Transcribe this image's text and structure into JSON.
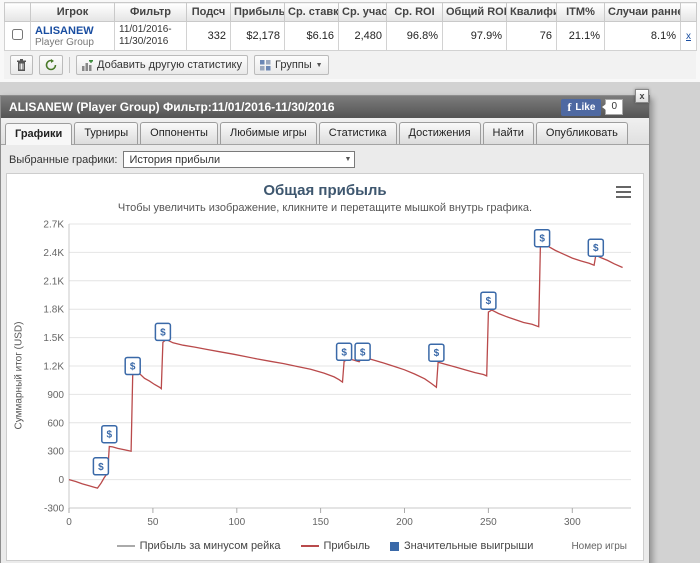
{
  "stats_table": {
    "columns": [
      "Игрок",
      "Фильтр",
      "Подсч",
      "Прибыль",
      "Ср. ставк",
      "Ср. учас",
      "Ср. ROI",
      "Общий ROI",
      "Квалифи",
      "ITM%",
      "Случаи ранне"
    ],
    "row": {
      "player_name": "ALISANEW",
      "player_type": "Player Group",
      "filter_line1": "11/01/2016-",
      "filter_line2": "11/30/2016",
      "values": [
        "332",
        "$2,178",
        "$6.16",
        "2,480",
        "96.8%",
        "97.9%",
        "76",
        "21.1%",
        "8.1%"
      ],
      "remove_label": "x"
    }
  },
  "toolbar": {
    "add_statistic_label": "Добавить другую статистику",
    "groups_label": "Группы"
  },
  "panel": {
    "title": "ALISANEW (Player Group) Фильтр:11/01/2016-11/30/2016",
    "close_label": "x",
    "facebook": {
      "f": "f",
      "like_label": "Like",
      "count": "0"
    },
    "tabs": [
      "Графики",
      "Турниры",
      "Оппоненты",
      "Любимые игры",
      "Статистика",
      "Достижения",
      "Найти",
      "Опубликовать"
    ],
    "active_tab": "Графики",
    "charts_select_label": "Выбранные графики:",
    "charts_select_value": "История прибыли"
  },
  "chart_data": {
    "type": "line",
    "title": "Общая прибыль",
    "subtitle": "Чтобы увеличить изображение, кликните и перетащите мышкой внутрь графика.",
    "ylabel": "Суммарный итог (USD)",
    "xlabel": "Номер игры",
    "xlim": [
      0,
      335
    ],
    "ylim": [
      -300,
      2700
    ],
    "grid": true,
    "legend_position": "bottom",
    "xticks": [
      0,
      50,
      100,
      150,
      200,
      250,
      300
    ],
    "yticks": [
      {
        "value": -300,
        "label": "-300"
      },
      {
        "value": 0,
        "label": "0"
      },
      {
        "value": 300,
        "label": "300"
      },
      {
        "value": 600,
        "label": "600"
      },
      {
        "value": 900,
        "label": "900"
      },
      {
        "value": 1200,
        "label": "1.2K"
      },
      {
        "value": 1500,
        "label": "1.5K"
      },
      {
        "value": 1800,
        "label": "1.8K"
      },
      {
        "value": 2100,
        "label": "2.1K"
      },
      {
        "value": 2400,
        "label": "2.4K"
      },
      {
        "value": 2700,
        "label": "2.7K"
      }
    ],
    "legend": [
      {
        "label": "Прибыль за минусом рейка",
        "type": "line",
        "color": "#aaaaaa"
      },
      {
        "label": "Прибыль",
        "type": "line",
        "color": "#b94a4b"
      },
      {
        "label": "Значительные выигрыши",
        "type": "square",
        "color": "#3a69a8"
      }
    ],
    "series": [
      {
        "name": "Прибыль",
        "color": "#b94a4b",
        "points": [
          [
            0,
            0
          ],
          [
            4,
            -20
          ],
          [
            8,
            -45
          ],
          [
            12,
            -65
          ],
          [
            15,
            -80
          ],
          [
            17,
            -90
          ],
          [
            19,
            -40
          ],
          [
            20,
            -10
          ],
          [
            21,
            20
          ],
          [
            22,
            45
          ],
          [
            23,
            60
          ],
          [
            24,
            350
          ],
          [
            26,
            345
          ],
          [
            29,
            330
          ],
          [
            33,
            315
          ],
          [
            37,
            300
          ],
          [
            38,
            1100
          ],
          [
            40,
            1170
          ],
          [
            42,
            1120
          ],
          [
            45,
            1070
          ],
          [
            48,
            1040
          ],
          [
            51,
            1005
          ],
          [
            54,
            975
          ],
          [
            55,
            960
          ],
          [
            56,
            1450
          ],
          [
            58,
            1480
          ],
          [
            62,
            1445
          ],
          [
            68,
            1420
          ],
          [
            75,
            1400
          ],
          [
            82,
            1375
          ],
          [
            90,
            1350
          ],
          [
            98,
            1325
          ],
          [
            105,
            1300
          ],
          [
            112,
            1275
          ],
          [
            120,
            1250
          ],
          [
            128,
            1225
          ],
          [
            136,
            1195
          ],
          [
            144,
            1165
          ],
          [
            152,
            1125
          ],
          [
            158,
            1085
          ],
          [
            161,
            1055
          ],
          [
            163,
            1030
          ],
          [
            164,
            1250
          ],
          [
            167,
            1275
          ],
          [
            170,
            1260
          ],
          [
            173,
            1245
          ],
          [
            175,
            1300
          ],
          [
            178,
            1280
          ],
          [
            183,
            1255
          ],
          [
            188,
            1230
          ],
          [
            194,
            1195
          ],
          [
            200,
            1160
          ],
          [
            206,
            1115
          ],
          [
            212,
            1065
          ],
          [
            216,
            1015
          ],
          [
            219,
            975
          ],
          [
            220,
            1240
          ],
          [
            224,
            1220
          ],
          [
            230,
            1190
          ],
          [
            236,
            1160
          ],
          [
            242,
            1130
          ],
          [
            247,
            1110
          ],
          [
            249,
            1095
          ],
          [
            250,
            1770
          ],
          [
            252,
            1790
          ],
          [
            256,
            1755
          ],
          [
            261,
            1720
          ],
          [
            266,
            1690
          ],
          [
            271,
            1660
          ],
          [
            276,
            1640
          ],
          [
            280,
            1615
          ],
          [
            281,
            2470
          ],
          [
            283,
            2500
          ],
          [
            286,
            2460
          ],
          [
            290,
            2420
          ],
          [
            295,
            2380
          ],
          [
            300,
            2340
          ],
          [
            305,
            2310
          ],
          [
            310,
            2285
          ],
          [
            313,
            2265
          ],
          [
            314,
            2370
          ],
          [
            317,
            2345
          ],
          [
            321,
            2315
          ],
          [
            325,
            2280
          ],
          [
            330,
            2240
          ]
        ]
      }
    ],
    "markers": {
      "name": "Значительные выигрыши",
      "symbol": "$",
      "color": "#3a69a8",
      "points": [
        [
          19,
          140
        ],
        [
          24,
          480
        ],
        [
          38,
          1200
        ],
        [
          56,
          1560
        ],
        [
          164,
          1350
        ],
        [
          175,
          1350
        ],
        [
          219,
          1340
        ],
        [
          250,
          1890
        ],
        [
          282,
          2550
        ],
        [
          314,
          2450
        ]
      ]
    }
  }
}
